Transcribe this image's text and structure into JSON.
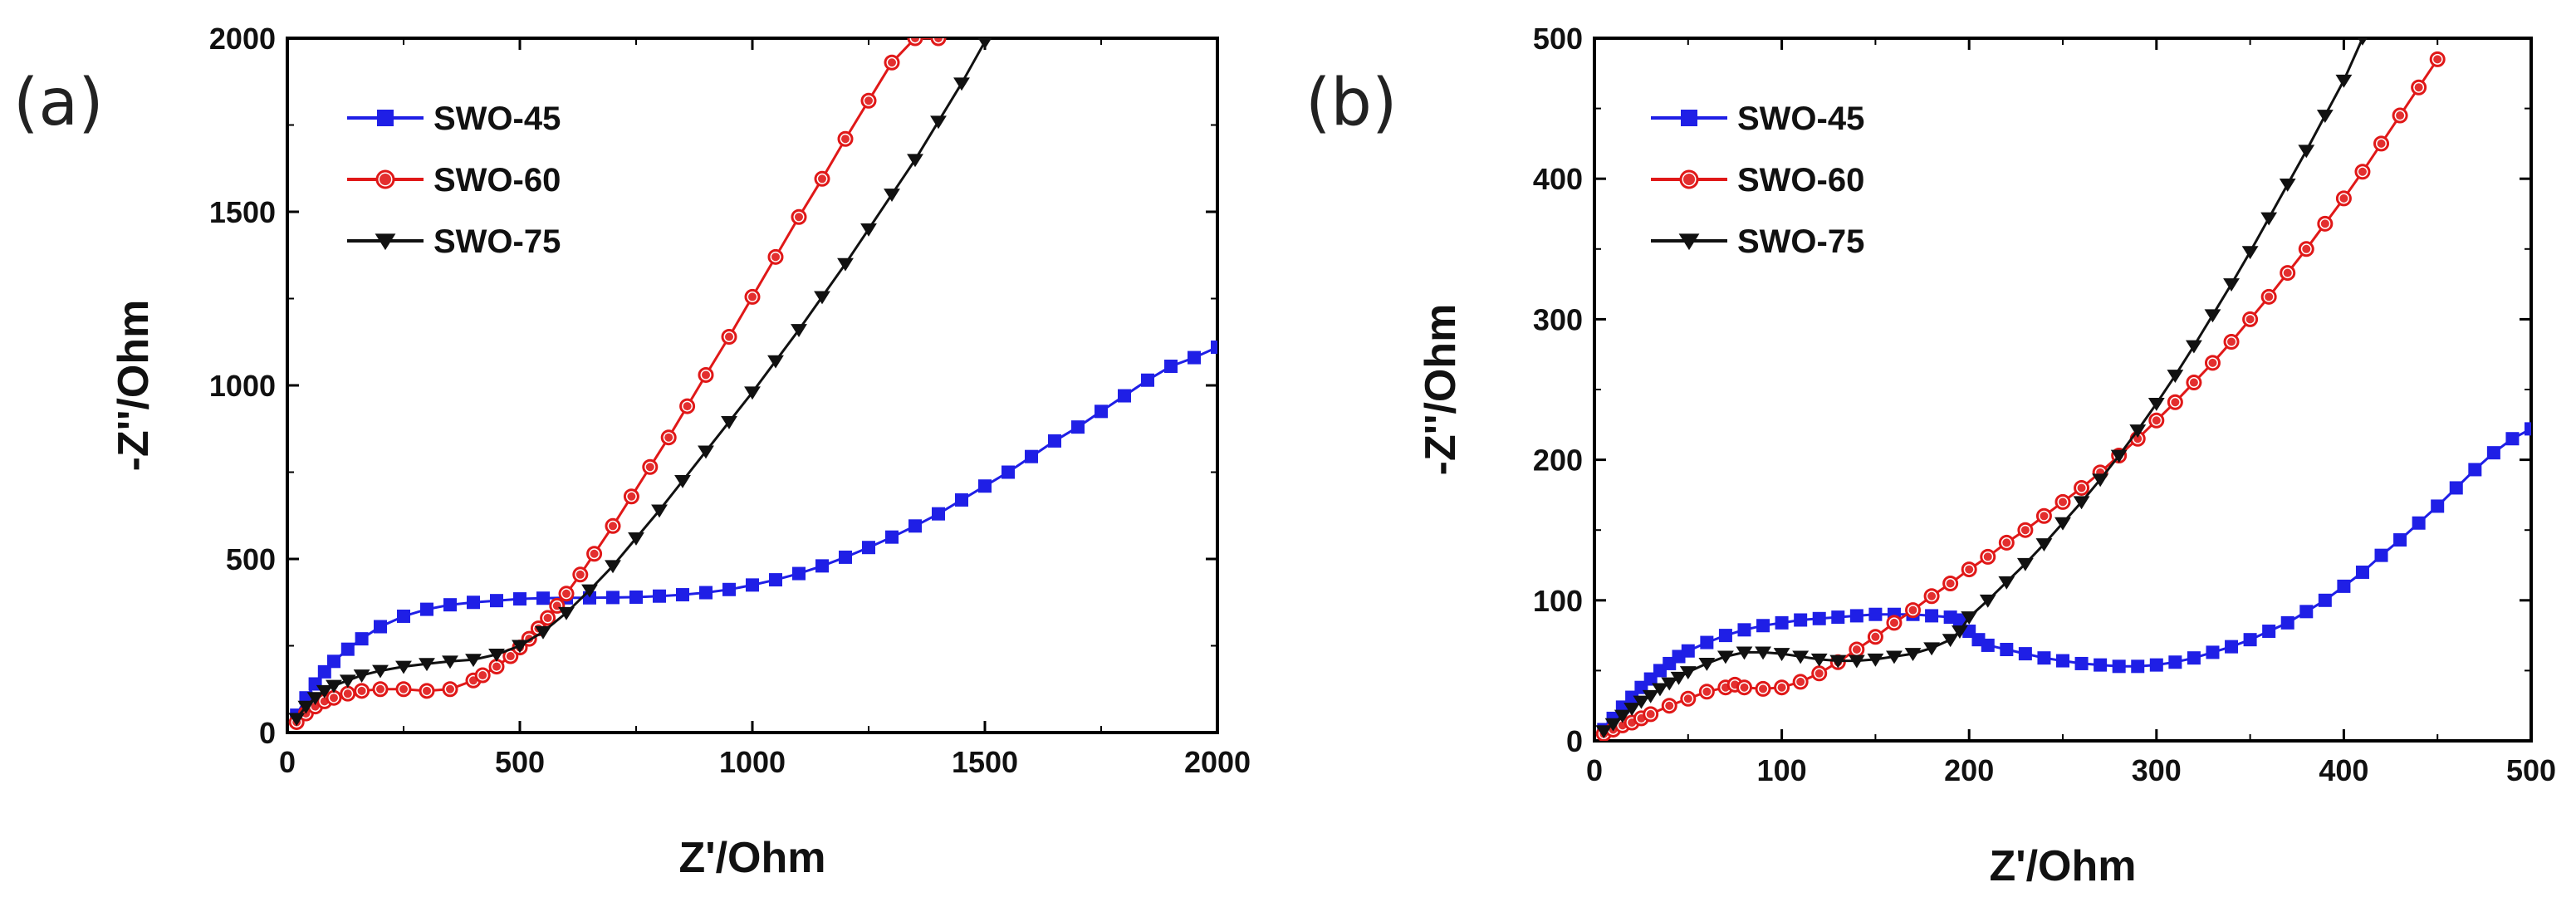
{
  "chart_data": [
    {
      "type": "line",
      "panel_label": "(a)",
      "title": "",
      "xlabel": "Z'/Ohm",
      "ylabel": "-Z''/Ohm",
      "xlim": [
        0,
        2000
      ],
      "ylim": [
        0,
        2000
      ],
      "xticks": [
        0,
        500,
        1000,
        1500,
        2000
      ],
      "yticks": [
        0,
        500,
        1000,
        1500,
        2000
      ],
      "xtick_labels": [
        "0",
        "500",
        "1000",
        "1500",
        "2000"
      ],
      "ytick_labels": [
        "0",
        "500",
        "1000",
        "1500",
        "2000"
      ],
      "legend_position": "top-left",
      "series": [
        {
          "name": "SWO-45",
          "color": "#1f1fe6",
          "marker": "square",
          "x": [
            20,
            40,
            60,
            80,
            100,
            130,
            160,
            200,
            250,
            300,
            350,
            400,
            450,
            500,
            550,
            600,
            650,
            700,
            750,
            800,
            850,
            900,
            950,
            1000,
            1050,
            1100,
            1150,
            1200,
            1250,
            1300,
            1350,
            1400,
            1450,
            1500,
            1550,
            1600,
            1650,
            1700,
            1750,
            1800,
            1850,
            1900,
            1950,
            2000
          ],
          "y": [
            50,
            100,
            140,
            175,
            205,
            240,
            270,
            305,
            335,
            355,
            368,
            375,
            380,
            385,
            387,
            388,
            388,
            389,
            390,
            393,
            397,
            403,
            412,
            425,
            440,
            458,
            480,
            505,
            533,
            563,
            595,
            630,
            670,
            710,
            750,
            795,
            840,
            880,
            925,
            970,
            1015,
            1055,
            1080,
            1110
          ]
        },
        {
          "name": "SWO-60",
          "color": "#e01818",
          "marker": "circle",
          "x": [
            20,
            40,
            60,
            80,
            100,
            130,
            160,
            200,
            250,
            300,
            350,
            400,
            420,
            450,
            480,
            500,
            520,
            540,
            560,
            580,
            600,
            630,
            660,
            700,
            740,
            780,
            820,
            860,
            900,
            950,
            1000,
            1050,
            1100,
            1150,
            1200,
            1250,
            1300,
            1350,
            1400
          ],
          "y": [
            30,
            55,
            75,
            90,
            100,
            112,
            120,
            125,
            125,
            120,
            125,
            150,
            165,
            190,
            220,
            245,
            270,
            300,
            330,
            365,
            400,
            455,
            515,
            595,
            680,
            765,
            850,
            940,
            1030,
            1140,
            1255,
            1370,
            1485,
            1595,
            1710,
            1820,
            1930,
            2000,
            2000
          ]
        },
        {
          "name": "SWO-75",
          "color": "#111111",
          "marker": "triangle-down",
          "x": [
            20,
            40,
            60,
            80,
            100,
            130,
            160,
            200,
            250,
            300,
            350,
            400,
            450,
            500,
            550,
            600,
            650,
            700,
            750,
            800,
            850,
            900,
            950,
            1000,
            1050,
            1100,
            1150,
            1200,
            1250,
            1300,
            1350,
            1400,
            1450,
            1500
          ],
          "y": [
            40,
            75,
            100,
            120,
            135,
            150,
            165,
            178,
            190,
            198,
            205,
            210,
            225,
            250,
            290,
            345,
            410,
            480,
            560,
            640,
            725,
            810,
            895,
            980,
            1070,
            1160,
            1255,
            1350,
            1450,
            1550,
            1650,
            1760,
            1870,
            1990
          ]
        }
      ]
    },
    {
      "type": "line",
      "panel_label": "(b)",
      "title": "",
      "xlabel": "Z'/Ohm",
      "ylabel": "-Z''/Ohm",
      "xlim": [
        0,
        500
      ],
      "ylim": [
        0,
        500
      ],
      "xticks": [
        0,
        100,
        200,
        300,
        400,
        500
      ],
      "yticks": [
        0,
        100,
        200,
        300,
        400,
        500
      ],
      "xtick_labels": [
        "0",
        "100",
        "200",
        "300",
        "400",
        "500"
      ],
      "ytick_labels": [
        "0",
        "100",
        "200",
        "300",
        "400",
        "500"
      ],
      "legend_position": "top-left",
      "series": [
        {
          "name": "SWO-45",
          "color": "#1f1fe6",
          "marker": "square",
          "x": [
            5,
            10,
            15,
            20,
            25,
            30,
            35,
            40,
            45,
            50,
            60,
            70,
            80,
            90,
            100,
            110,
            120,
            130,
            140,
            150,
            160,
            170,
            180,
            190,
            195,
            200,
            205,
            210,
            220,
            230,
            240,
            250,
            260,
            270,
            280,
            290,
            300,
            310,
            320,
            330,
            340,
            350,
            360,
            370,
            380,
            390,
            400,
            410,
            420,
            430,
            440,
            450,
            460,
            470,
            480,
            490,
            500
          ],
          "y": [
            8,
            16,
            24,
            31,
            38,
            44,
            50,
            55,
            60,
            64,
            70,
            75,
            79,
            82,
            84,
            86,
            87,
            88,
            89,
            90,
            90,
            90,
            89,
            88,
            86,
            78,
            72,
            68,
            65,
            62,
            59,
            57,
            55,
            54,
            53,
            53,
            54,
            56,
            59,
            63,
            67,
            72,
            78,
            84,
            92,
            100,
            110,
            120,
            132,
            143,
            155,
            167,
            180,
            193,
            205,
            215,
            222
          ]
        },
        {
          "name": "SWO-60",
          "color": "#e01818",
          "marker": "circle",
          "x": [
            5,
            10,
            15,
            20,
            25,
            30,
            40,
            50,
            60,
            70,
            75,
            80,
            90,
            100,
            110,
            120,
            130,
            140,
            150,
            160,
            170,
            180,
            190,
            200,
            210,
            220,
            230,
            240,
            250,
            260,
            270,
            280,
            290,
            300,
            310,
            320,
            330,
            340,
            350,
            360,
            370,
            380,
            390,
            400,
            410,
            420,
            430,
            440,
            450
          ],
          "y": [
            5,
            8,
            11,
            13,
            16,
            19,
            25,
            30,
            35,
            38,
            40,
            38,
            37,
            38,
            42,
            48,
            56,
            65,
            74,
            84,
            93,
            103,
            112,
            122,
            131,
            141,
            150,
            160,
            170,
            180,
            191,
            203,
            215,
            228,
            241,
            255,
            269,
            284,
            300,
            316,
            333,
            350,
            368,
            386,
            405,
            425,
            445,
            465,
            485
          ]
        },
        {
          "name": "SWO-75",
          "color": "#111111",
          "marker": "triangle-down",
          "x": [
            5,
            10,
            15,
            20,
            25,
            30,
            35,
            40,
            45,
            50,
            60,
            70,
            80,
            90,
            100,
            110,
            120,
            130,
            140,
            150,
            160,
            170,
            180,
            190,
            195,
            200,
            210,
            220,
            230,
            240,
            250,
            260,
            270,
            280,
            290,
            300,
            310,
            320,
            330,
            340,
            350,
            360,
            370,
            380,
            390,
            400,
            410
          ],
          "y": [
            7,
            12,
            18,
            23,
            28,
            32,
            37,
            41,
            45,
            49,
            55,
            60,
            63,
            63,
            62,
            60,
            58,
            57,
            57,
            58,
            60,
            62,
            66,
            72,
            78,
            88,
            100,
            113,
            126,
            140,
            155,
            170,
            186,
            203,
            221,
            240,
            260,
            281,
            303,
            325,
            348,
            372,
            396,
            420,
            445,
            470,
            500
          ]
        }
      ]
    }
  ]
}
